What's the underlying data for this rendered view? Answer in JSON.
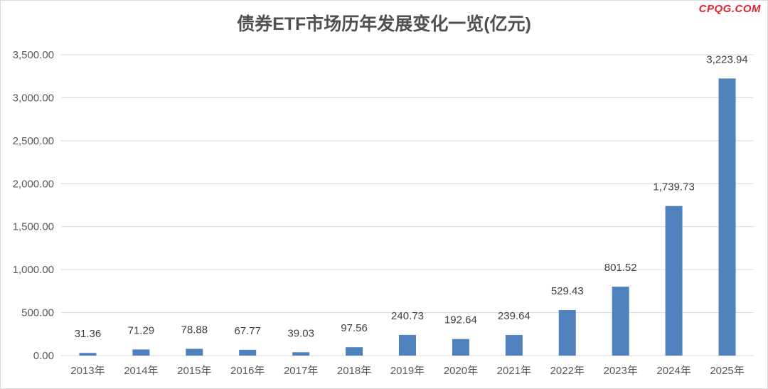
{
  "watermark": "CPQG.COM",
  "chart_data": {
    "type": "bar",
    "title": "债券ETF市场历年发展变化一览(亿元)",
    "xlabel": "",
    "ylabel": "",
    "ylim": [
      0,
      3500
    ],
    "yticks": [
      "0.00",
      "500.00",
      "1,000.00",
      "1,500.00",
      "2,000.00",
      "2,500.00",
      "3,000.00",
      "3,500.00"
    ],
    "grid": true,
    "categories": [
      "2013年",
      "2014年",
      "2015年",
      "2016年",
      "2017年",
      "2018年",
      "2019年",
      "2020年",
      "2021年",
      "2022年",
      "2023年",
      "2024年",
      "2025年"
    ],
    "values": [
      31.36,
      71.29,
      78.88,
      67.77,
      39.03,
      97.56,
      240.73,
      192.64,
      239.64,
      529.43,
      801.52,
      1739.73,
      3223.94
    ],
    "value_labels": [
      "31.36",
      "71.29",
      "78.88",
      "67.77",
      "39.03",
      "97.56",
      "240.73",
      "192.64",
      "239.64",
      "529.43",
      "801.52",
      "1,739.73",
      "3,223.94"
    ],
    "bar_color": "#4f81bd"
  }
}
